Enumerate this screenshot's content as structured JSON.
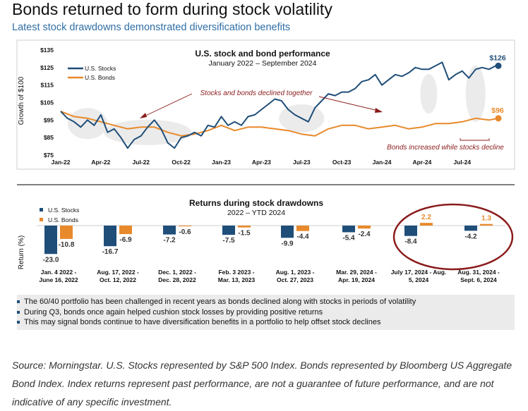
{
  "header": {
    "title": "Bonds returned to form during stock volatility",
    "subtitle": "Latest stock drawdowns demonstrated diversification benefits"
  },
  "colors": {
    "stocks": "#1f4e79",
    "bonds": "#e8892b",
    "highlight_circle": "#8b1c1c",
    "annotation": "#8b1c1c"
  },
  "chart_data": [
    {
      "type": "line",
      "title": "U.S. stock and bond performance",
      "subtitle": "January 2022 – September 2024",
      "ylabel": "Growth of $100",
      "ylim": [
        75,
        135
      ],
      "y_ticks": [
        "$135",
        "$125",
        "$115",
        "$105",
        "$95",
        "$85",
        "$75"
      ],
      "y_tick_values": [
        135,
        125,
        115,
        105,
        95,
        85,
        75
      ],
      "x_ticks": [
        "Jan-22",
        "Apr-22",
        "Jul-22",
        "Oct-22",
        "Jan-23",
        "Apr-23",
        "Jul-23",
        "Oct-23",
        "Jan-24",
        "Apr-24",
        "Jul-24"
      ],
      "x_range_months": [
        0,
        32.7
      ],
      "legend": [
        "U.S. Stocks",
        "U.S. Bonds"
      ],
      "legend_position": "top-left",
      "series": [
        {
          "name": "U.S. Stocks",
          "x": [
            0,
            0.5,
            1,
            1.5,
            2,
            2.5,
            3,
            3.5,
            4,
            4.5,
            5,
            5.5,
            6,
            6.5,
            7,
            7.5,
            8,
            8.5,
            9,
            9.5,
            10,
            10.5,
            11,
            11.5,
            12,
            12.5,
            13,
            13.5,
            14,
            14.5,
            15,
            15.5,
            16,
            16.5,
            17,
            17.5,
            18,
            18.5,
            19,
            19.5,
            20,
            20.5,
            21,
            21.5,
            22,
            22.5,
            23,
            23.5,
            24,
            24.5,
            25,
            25.5,
            26,
            26.5,
            27,
            27.5,
            28,
            28.5,
            29,
            29.5,
            30,
            30.5,
            31,
            31.5,
            32,
            32.5,
            32.7
          ],
          "y": [
            100,
            96,
            94,
            91,
            95,
            92,
            98,
            88,
            90,
            85,
            79,
            84,
            86,
            91,
            95,
            90,
            82,
            79,
            85,
            86,
            88,
            86,
            92,
            91,
            97,
            92,
            94,
            92,
            97,
            98,
            101,
            104,
            107,
            106,
            101,
            98,
            96,
            94,
            102,
            106,
            110,
            109,
            111,
            111,
            113,
            117,
            118,
            121,
            115,
            118,
            121,
            120,
            122,
            125,
            124,
            124,
            126,
            128,
            118,
            121,
            123,
            119,
            124,
            125,
            124,
            126,
            126
          ]
        },
        {
          "name": "U.S. Bonds",
          "x": [
            0,
            1,
            2,
            3,
            4,
            5,
            6,
            7,
            8,
            9,
            10,
            11,
            12,
            13,
            14,
            15,
            16,
            17,
            18,
            19,
            20,
            21,
            22,
            23,
            24,
            25,
            26,
            27,
            28,
            29,
            30,
            31,
            32,
            32.7
          ],
          "y": [
            100,
            97,
            96,
            94,
            92,
            90,
            91,
            91,
            88,
            86,
            87,
            89,
            92,
            89,
            91,
            91,
            90,
            89,
            87,
            86,
            90,
            92,
            92,
            90,
            91,
            92,
            90,
            91,
            93,
            93,
            94,
            96,
            95,
            96
          ]
        }
      ],
      "end_labels": {
        "stocks": "$126",
        "bonds": "$96"
      },
      "annotations": [
        "Stocks and bonds declined together",
        "Bonds increased while stocks decline"
      ]
    },
    {
      "type": "bar",
      "title": "Returns during stock drawdowns",
      "subtitle": "2022 – YTD 2024",
      "ylabel": "Return (%)",
      "legend": [
        "U.S. Stocks",
        "U.S. Bonds"
      ],
      "legend_position": "top-left",
      "categories": [
        [
          "Jan. 4 2022 -",
          "June 16, 2022"
        ],
        [
          "Aug. 17, 2022 -",
          "Oct. 12, 2022"
        ],
        [
          "Dec. 1, 2022 -",
          "Dec. 28, 2022"
        ],
        [
          "Feb. 3 2023 -",
          "Mar. 13, 2023"
        ],
        [
          "Aug. 1, 2023 -",
          "Oct. 27, 2023"
        ],
        [
          "Mar. 29, 2024 -",
          "Apr. 19, 2024"
        ],
        [
          "July 17, 2024 - Aug.",
          "5, 2024"
        ],
        [
          "Aug. 31, 2024 -",
          "Sept. 6, 2024"
        ]
      ],
      "series": [
        {
          "name": "U.S. Stocks",
          "values": [
            -23.0,
            -16.7,
            -7.2,
            -7.5,
            -9.9,
            -5.4,
            -8.4,
            -4.2
          ],
          "labels": [
            "-23.0",
            "-16.7",
            "-7.2",
            "-7.5",
            "-9.9",
            "-5.4",
            "-8.4",
            "-4.2"
          ]
        },
        {
          "name": "U.S. Bonds",
          "values": [
            -10.8,
            -6.9,
            -0.6,
            -1.5,
            -4.4,
            -2.4,
            2.2,
            1.3
          ],
          "labels": [
            "-10.8",
            "-6.9",
            "-0.6",
            "-1.5",
            "-4.4",
            "-2.4",
            "2.2",
            "1.3"
          ]
        }
      ]
    }
  ],
  "bullets": [
    "The 60/40 portfolio has been challenged in recent years as bonds declined along with stocks in periods of volatility",
    "During Q3, bonds once again helped cushion stock losses by providing positive returns",
    "This may signal bonds continue to have diversification benefits in a portfolio to help offset stock declines"
  ],
  "source": "Source: Morningstar. U.S. Stocks represented by S&P 500 Index. Bonds represented by Bloomberg US Aggregate Bond Index. Index returns represent past performance, are not a guarantee of future performance, and are not indicative of any specific investment."
}
